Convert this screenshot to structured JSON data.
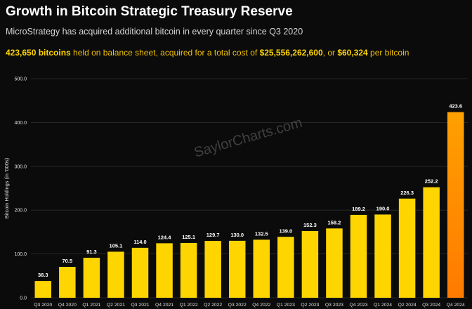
{
  "header": {
    "title": "Growth in Bitcoin Strategic Treasury Reserve",
    "subtitle": "MicroStrategy has acquired additional bitcoin in every quarter since Q3 2020",
    "summary": {
      "bitcoins": "423,650 bitcoins",
      "text1": " held on balance sheet, acquired for a total cost of ",
      "cost": "$25,556,262,600",
      "text2": ", or ",
      "per_btc": "$60,324",
      "text3": " per bitcoin"
    }
  },
  "watermark": "SaylorCharts.com",
  "colors": {
    "bar": "#ffd500",
    "bar_highlight_top": "#ffa000",
    "bar_highlight_bottom": "#ff7a00",
    "grid": "#2e2e2e"
  },
  "chart_data": {
    "type": "bar",
    "title": "",
    "xlabel": "",
    "ylabel": "Bitcoin Holdings (in '000s)",
    "ylim": [
      0,
      500
    ],
    "yticks": [
      0,
      100,
      200,
      300,
      400,
      500
    ],
    "ytick_labels": [
      "0.0",
      "100.0",
      "200.0",
      "300.0",
      "400.0",
      "500.0"
    ],
    "grid": true,
    "categories": [
      "Q3 2020",
      "Q4 2020",
      "Q1 2021",
      "Q2 2021",
      "Q3 2021",
      "Q4 2021",
      "Q1 2022",
      "Q2 2022",
      "Q3 2022",
      "Q4 2022",
      "Q1 2023",
      "Q2 2023",
      "Q3 2023",
      "Q4 2023",
      "Q1 2024",
      "Q2 2024",
      "Q3 2024",
      "Q4 2024"
    ],
    "values": [
      38.3,
      70.5,
      91.3,
      105.1,
      114.0,
      124.4,
      125.1,
      129.7,
      130.0,
      132.5,
      139.0,
      152.3,
      158.2,
      189.2,
      190.0,
      226.3,
      252.2,
      423.6
    ],
    "value_labels": [
      "38.3",
      "70.5",
      "91.3",
      "105.1",
      "114.0",
      "124.4",
      "125.1",
      "129.7",
      "130.0",
      "132.5",
      "139.0",
      "152.3",
      "158.2",
      "189.2",
      "190.0",
      "226.3",
      "252.2",
      "423.6"
    ],
    "highlight_index": 17
  }
}
